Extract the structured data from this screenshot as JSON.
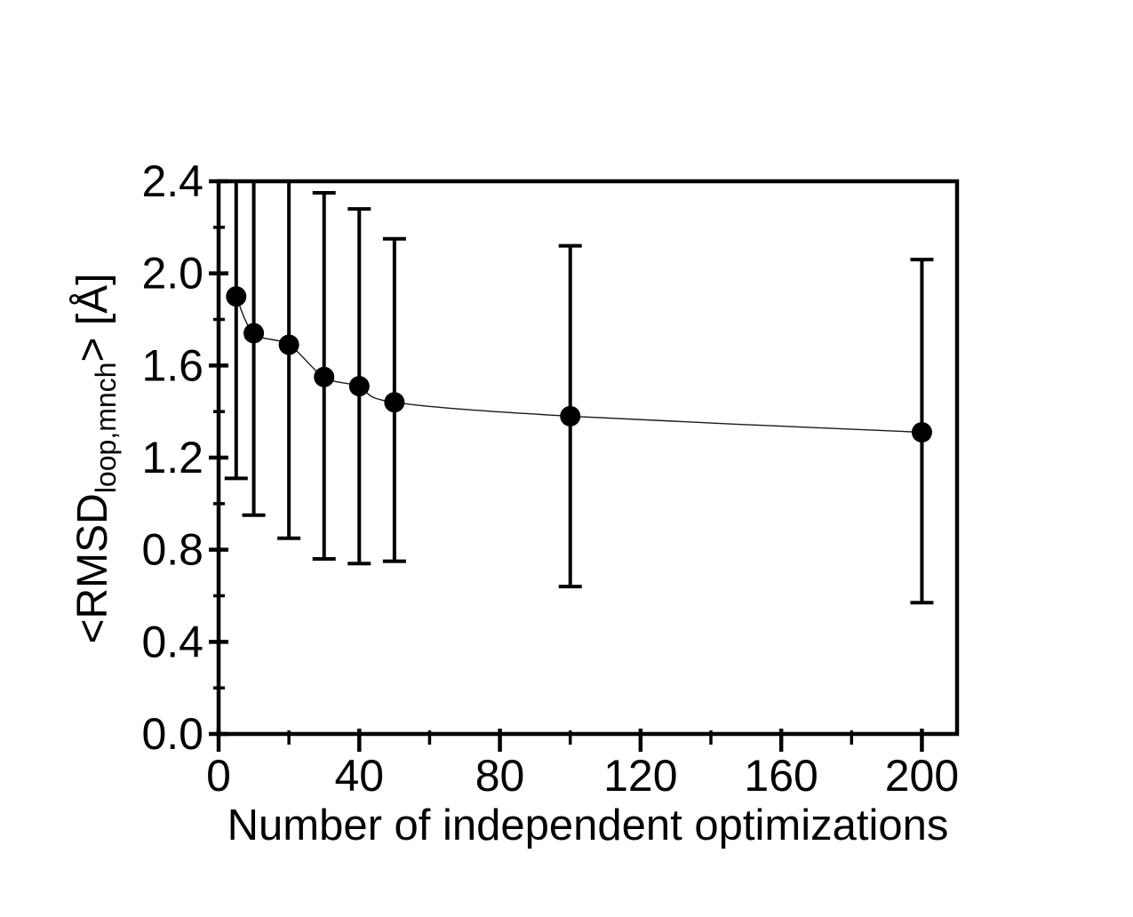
{
  "page": {
    "background_color": "#ffffff",
    "text_color": "#000000"
  },
  "chart_data": {
    "type": "scatter",
    "title": "",
    "xlabel": "Number of independent optimizations",
    "ylabel": {
      "prefix": "<RMSD",
      "sub": "loop,mnch",
      "suffix": "> [Å]"
    },
    "xlim": [
      0,
      210
    ],
    "ylim": [
      0.0,
      2.4
    ],
    "grid": false,
    "legend": null,
    "axis_color": "#000000",
    "marker_color": "#000000",
    "curve_color": "#1a1a1a",
    "x_ticks": [
      {
        "v": 0,
        "label": "0"
      },
      {
        "v": 40,
        "label": "40"
      },
      {
        "v": 80,
        "label": "80"
      },
      {
        "v": 120,
        "label": "120"
      },
      {
        "v": 160,
        "label": "160"
      },
      {
        "v": 200,
        "label": "200"
      }
    ],
    "x_minor_ticks": [
      20,
      60,
      100,
      140,
      180
    ],
    "y_ticks": [
      {
        "v": 0.0,
        "label": "0.0"
      },
      {
        "v": 0.4,
        "label": "0.4"
      },
      {
        "v": 0.8,
        "label": "0.8"
      },
      {
        "v": 1.2,
        "label": "1.2"
      },
      {
        "v": 1.6,
        "label": "1.6"
      },
      {
        "v": 2.0,
        "label": "2.0"
      },
      {
        "v": 2.4,
        "label": "2.4"
      }
    ],
    "y_minor_ticks": [
      0.2,
      0.6,
      1.0,
      1.4,
      1.8,
      2.2
    ],
    "series": [
      {
        "points": [
          {
            "x": 5,
            "y": 1.9,
            "y_lo": 1.11,
            "y_hi": 2.4,
            "hi_clipped": true
          },
          {
            "x": 10,
            "y": 1.74,
            "y_lo": 0.95,
            "y_hi": 2.4,
            "hi_clipped": true
          },
          {
            "x": 20,
            "y": 1.69,
            "y_lo": 0.85,
            "y_hi": 2.4,
            "hi_clipped": true
          },
          {
            "x": 30,
            "y": 1.55,
            "y_lo": 0.76,
            "y_hi": 2.35,
            "hi_clipped": false
          },
          {
            "x": 40,
            "y": 1.51,
            "y_lo": 0.74,
            "y_hi": 2.28,
            "hi_clipped": false
          },
          {
            "x": 50,
            "y": 1.44,
            "y_lo": 0.75,
            "y_hi": 2.15,
            "hi_clipped": false
          },
          {
            "x": 100,
            "y": 1.38,
            "y_lo": 0.64,
            "y_hi": 2.12,
            "hi_clipped": false
          },
          {
            "x": 200,
            "y": 1.31,
            "y_lo": 0.57,
            "y_hi": 2.06,
            "hi_clipped": false
          }
        ]
      }
    ]
  }
}
